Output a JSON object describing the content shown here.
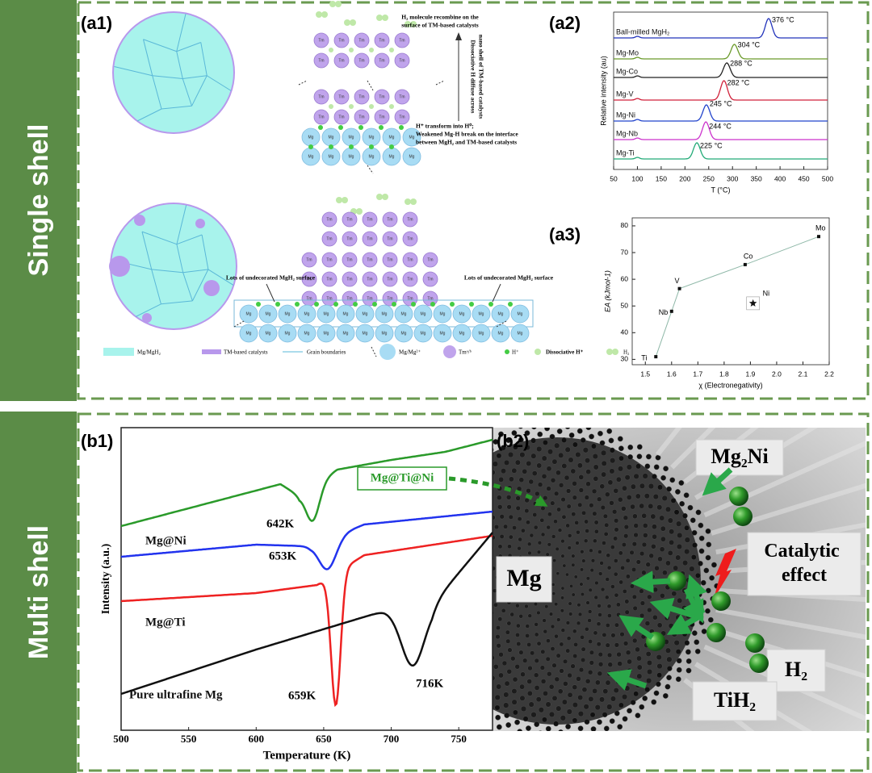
{
  "sections": [
    "Single shell",
    "Multi shell"
  ],
  "panels": {
    "a1": "(a1)",
    "a2": "(a2)",
    "a3": "(a3)",
    "b1": "(b1)",
    "b2": "(b2)"
  },
  "diagram_a1": {
    "note_top": [
      "H₂ molecule recombine on the",
      "surface of TM-based catalysts"
    ],
    "note_side": [
      "Dissociative H diffuse across",
      "nano shell of TM-based catalysts"
    ],
    "note_bottom": [
      "H⁺ transform into H⁰;",
      "Weakened Mg-H break on the interface",
      "between MgH₂ and TM-based catalysts"
    ],
    "undecorated": "Lots of undecorated MgH₂ surface",
    "circle_labels": {
      "tm": "Tm",
      "mg": "Mg"
    },
    "legend": [
      "Mg/MgH₂",
      "TM-based catalysts",
      "Grain boundaries",
      "Mg/Mg²⁺",
      "Tmᵃ/ᵇ",
      "H⁺",
      "Dissociative H⁺",
      "H₂"
    ]
  },
  "image_b2": {
    "labels": [
      "Mg₂Ni",
      "Catalytic effect",
      "Mg",
      "H₂",
      "TiH₂"
    ]
  },
  "chart_data": [
    {
      "type": "line",
      "xlabel": "T (°C)",
      "ylabel": "Relative intensity (au)",
      "xlim": [
        50,
        500
      ],
      "xticks": [
        50,
        100,
        150,
        200,
        250,
        300,
        350,
        400,
        450,
        500
      ],
      "series": [
        {
          "name": "Ball-milled MgH₂",
          "color": "#2233bb",
          "peak": 376,
          "peak_label": "376 °C"
        },
        {
          "name": "Mg-Mo",
          "color": "#6a9a2a",
          "peak": 304,
          "peak_label": "304 °C"
        },
        {
          "name": "Mg-Co",
          "color": "#222222",
          "peak": 288,
          "peak_label": "288 °C"
        },
        {
          "name": "Mg-V",
          "color": "#d0203a",
          "peak": 282,
          "peak_label": "282 °C"
        },
        {
          "name": "Mg-Ni",
          "color": "#2244cc",
          "peak": 245,
          "peak_label": "245 °C"
        },
        {
          "name": "Mg-Nb",
          "color": "#cc33cc",
          "peak": 244,
          "peak_label": "244 °C"
        },
        {
          "name": "Mg-Ti",
          "color": "#22aa77",
          "peak": 225,
          "peak_label": "225 °C"
        }
      ]
    },
    {
      "type": "scatter",
      "xlabel": "χ (Electronegativity)",
      "ylabel": "EA (kJmol-1)",
      "xlim": [
        1.45,
        2.2
      ],
      "xticks": [
        1.5,
        1.6,
        1.7,
        1.8,
        1.9,
        {
          "value": 2,
          "label": "2.0"
        },
        2.1,
        2.2
      ],
      "ylim": [
        28,
        83
      ],
      "yticks": [
        30,
        40,
        50,
        60,
        70,
        80
      ],
      "x": [
        1.54,
        1.6,
        1.63,
        1.88,
        2.16
      ],
      "values": [
        31,
        48,
        56.5,
        65.5,
        76
      ],
      "point_labels": [
        "Ti",
        "Nb",
        "V",
        "Co",
        "Mo"
      ],
      "outlier": {
        "label": "Ni",
        "x": 1.91,
        "y": 51
      }
    },
    {
      "type": "line",
      "xlabel": "Temperature (K)",
      "ylabel": "Intensity (a.u.)",
      "xlim": [
        500,
        775
      ],
      "xticks": [
        500,
        550,
        600,
        650,
        700,
        750
      ],
      "series": [
        {
          "name": "Mg@Ti@Ni",
          "color": "#2a9a2a",
          "peak": 642,
          "peak_label": "642K"
        },
        {
          "name": "Mg@Ni",
          "color": "#2233ee",
          "peak": 653,
          "peak_label": "653K"
        },
        {
          "name": "Mg@Ti",
          "color": "#ee2222",
          "peak": 659,
          "peak_label": "659K"
        },
        {
          "name": "Pure ultrafine Mg",
          "color": "#111111",
          "peak": 716,
          "peak_label": "716K"
        }
      ]
    }
  ]
}
